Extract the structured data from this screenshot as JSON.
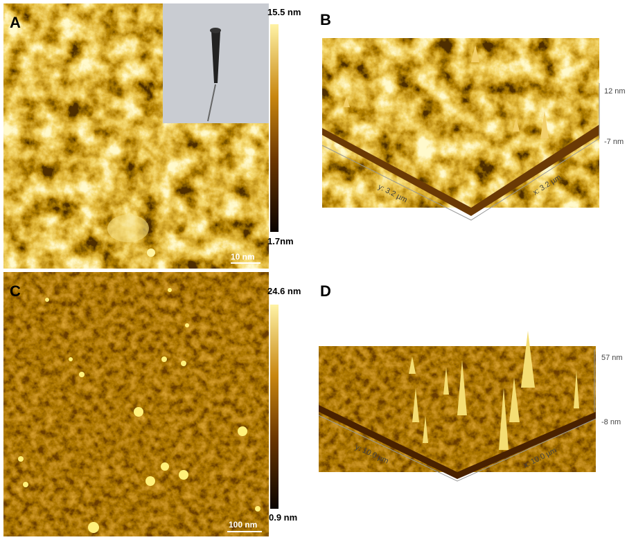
{
  "panels": [
    {
      "label": "A",
      "colorbar_max": "15.5 nm",
      "colorbar_min": "1.7nm",
      "scale_bar": "10 nm"
    },
    {
      "label": "B",
      "y_axis": "y: 3.2 µm",
      "x_axis": "x: 3.2 µm",
      "z_max": "12 nm",
      "z_min": "-7 nm"
    },
    {
      "label": "C",
      "colorbar_max": "24.6 nm",
      "colorbar_min": "0.9 nm",
      "scale_bar": "100 nm"
    },
    {
      "label": "D",
      "y_axis": "y: 10.0 µm",
      "x_axis": "x: 10.0 µm",
      "z_max": "57 nm",
      "z_min": "-8 nm"
    }
  ]
}
